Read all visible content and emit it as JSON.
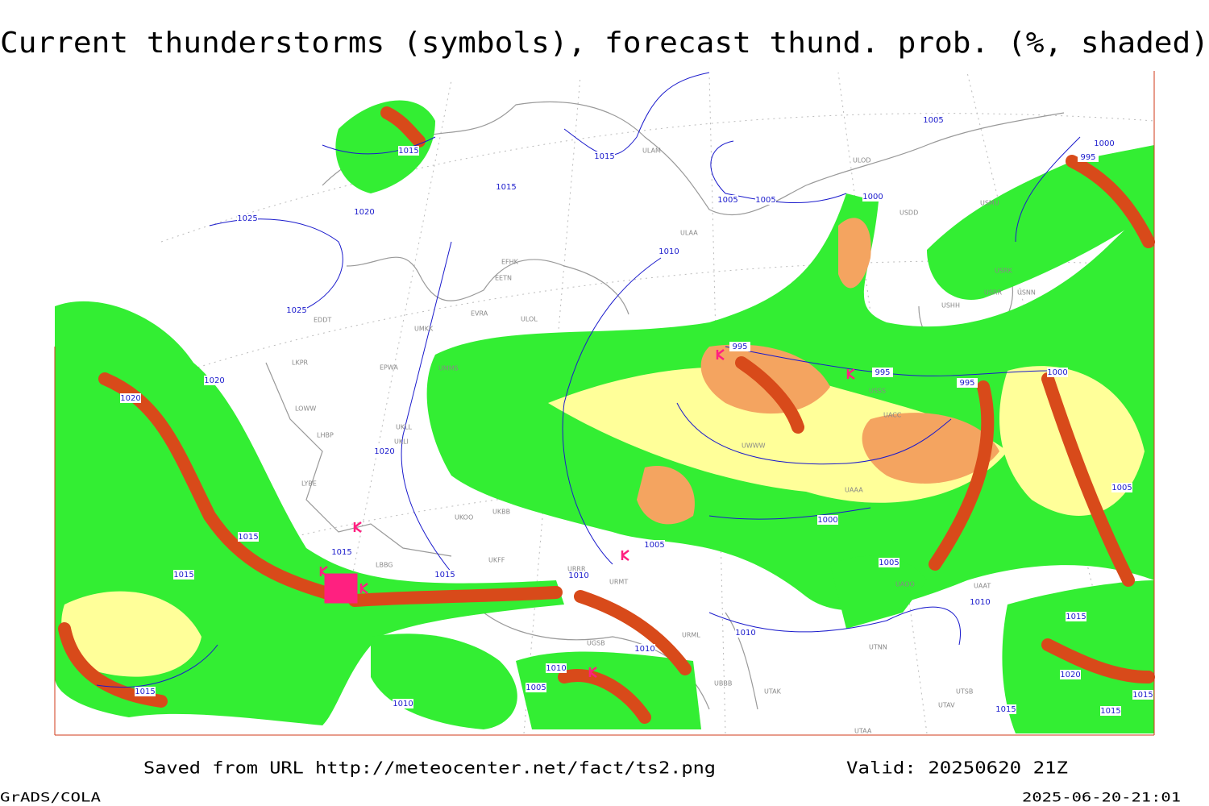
{
  "title": "Current thunderstorms (symbols), forecast thund. prob. (%, shaded)",
  "map": {
    "isobar_labels": [
      1015,
      1015,
      1015,
      1020,
      1025,
      1025,
      1005,
      1000,
      995,
      1005,
      1005,
      1000,
      1010,
      995,
      995,
      995,
      1000,
      1020,
      1020,
      1020,
      1015,
      1015,
      1015,
      1015,
      1010,
      1005,
      1000,
      1005,
      1005,
      1010,
      1015,
      1020,
      1010,
      1005,
      1010,
      1015,
      1010,
      1010,
      1015,
      1015,
      1015
    ],
    "station_labels": [
      "ULAM",
      "ULOD",
      "USDD",
      "USMU",
      "ULAA",
      "EFHK",
      "EETN",
      "EVRA",
      "ULOL",
      "UMKK",
      "EDDT",
      "EPWA",
      "LKPR",
      "UMMS",
      "LOWW",
      "LHBP",
      "UKLL",
      "UKLI",
      "LYBE",
      "UKBB",
      "UKOO",
      "UWWW",
      "USSS",
      "UACC",
      "UAAA",
      "USRR",
      "USNN",
      "USRK",
      "USHH",
      "UTAA",
      "UTNN",
      "UTAK",
      "UTSB",
      "UTAV",
      "URML",
      "UGSB",
      "UBBB",
      "UAAT",
      "UAOO",
      "URMT",
      "URRR",
      "UKFF",
      "LBBG"
    ]
  },
  "footer": {
    "source": "Saved from URL http://meteocenter.net/fact/ts2.png",
    "valid": "Valid: 20250620 21Z",
    "software": "GrADS/COLA",
    "timestamp": "2025-06-20-21:01"
  }
}
